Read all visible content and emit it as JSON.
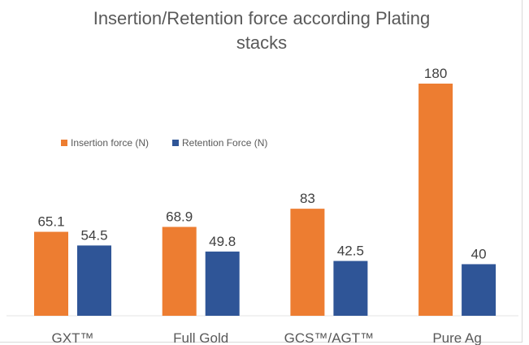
{
  "chart_data": {
    "type": "bar",
    "title": "Insertion/Retention force according Plating stacks",
    "title_lines": [
      "Insertion/Retention force according Plating",
      "stacks"
    ],
    "xlabel": "",
    "ylabel": "",
    "categories": [
      "GXT™",
      "Full Gold",
      "GCS™/AGT™",
      "Pure Ag"
    ],
    "series": [
      {
        "name": "Insertion force (N)",
        "color": "#ED7D31",
        "values": [
          65.1,
          68.9,
          83,
          180
        ],
        "labels": [
          "65.1",
          "68.9",
          "83",
          "180"
        ]
      },
      {
        "name": "Retention Force (N)",
        "color": "#2F5597",
        "values": [
          54.5,
          49.8,
          42.5,
          40
        ],
        "labels": [
          "54.5",
          "49.8",
          "42.5",
          "40"
        ]
      }
    ],
    "ylim": [
      0,
      180
    ],
    "grid": false,
    "legend": "upper-left",
    "data_labels": true
  }
}
